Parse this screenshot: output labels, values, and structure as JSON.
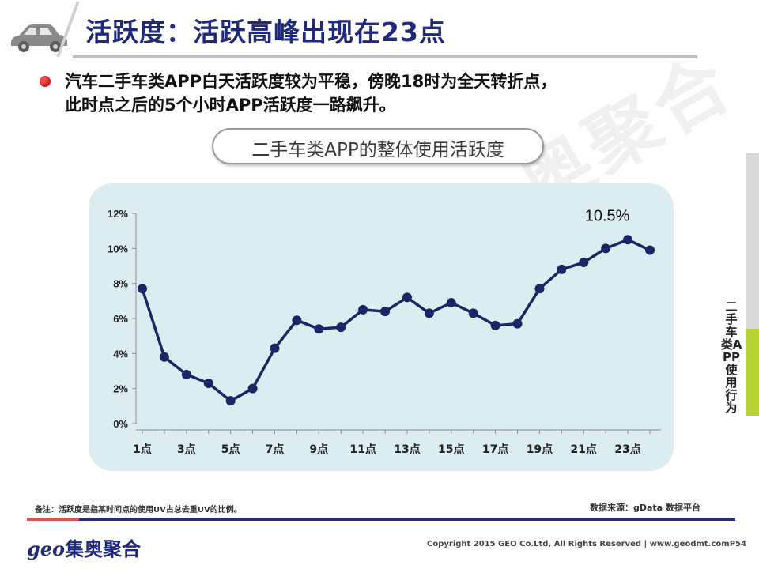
{
  "header": {
    "title": "活跃度：活跃高峰出现在23点"
  },
  "bullet": {
    "text_line1": "汽车二手车类APP白天活跃度较为平稳，傍晚18时为全天转折点，",
    "text_line2": "此时点之后的5个小时APP活跃度一路飙升。"
  },
  "watermark": "奥聚合",
  "chart_data": {
    "type": "line",
    "title": "二手车类APP的整体使用活跃度",
    "x": [
      1,
      2,
      3,
      4,
      5,
      6,
      7,
      8,
      9,
      10,
      11,
      12,
      13,
      14,
      15,
      16,
      17,
      18,
      19,
      20,
      21,
      22,
      23,
      24
    ],
    "x_tick_labels": [
      "1点",
      "3点",
      "5点",
      "7点",
      "9点",
      "11点",
      "13点",
      "15点",
      "17点",
      "19点",
      "21点",
      "23点"
    ],
    "y_tick_labels": [
      "0%",
      "2%",
      "4%",
      "6%",
      "8%",
      "10%",
      "12%"
    ],
    "ylim": [
      0,
      12
    ],
    "y_unit": "%",
    "series": [
      {
        "values": [
          7.7,
          3.8,
          2.8,
          2.3,
          1.3,
          2.0,
          4.3,
          5.9,
          5.4,
          5.5,
          6.5,
          6.4,
          7.2,
          6.3,
          6.9,
          6.3,
          5.6,
          5.7,
          7.7,
          8.8,
          9.2,
          10.0,
          10.5,
          9.9
        ],
        "color": "#1c2566"
      }
    ],
    "annotation": {
      "text": "10.5%",
      "x": 23,
      "y": 10.5
    },
    "grid": false
  },
  "side_label": "二手车类APP使用行为",
  "footer": {
    "note": "备注：活跃度是指某时间点的使用UV占总去重UV的比例。",
    "source": "数据来源：gData 数据平台",
    "logo_latin": "geo",
    "logo_cjk": "集奥聚合",
    "copyright": "Copyright 2015 GEO Co.Ltd, All Rights Reserved  |  www.geodmt.com",
    "page": "P54"
  },
  "colors": {
    "title": "#1f2b7a",
    "panel_bg": "#dcedf2",
    "line": "#1c2566",
    "bullet": "#c00000",
    "accent_green": "#b7d334"
  }
}
